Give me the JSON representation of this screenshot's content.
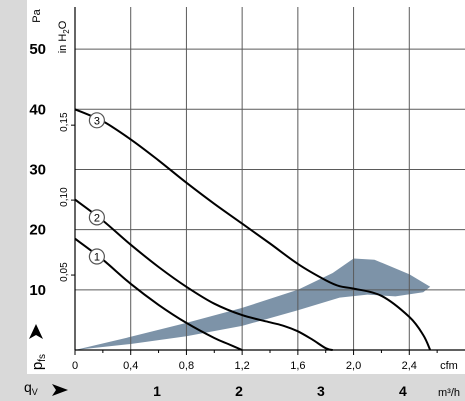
{
  "chart_data": {
    "type": "line",
    "title": "",
    "colors": {
      "panel": "#d9d9d9",
      "grid": "#5a5a5a",
      "curve": "#000000",
      "operating_area": "#7d93a8"
    },
    "y_axis_pa": {
      "label": "Pa",
      "range": [
        0,
        57
      ],
      "ticks": [
        {
          "value": 10,
          "label": "10"
        },
        {
          "value": 20,
          "label": "20"
        },
        {
          "value": 30,
          "label": "30"
        },
        {
          "value": 40,
          "label": "40"
        },
        {
          "value": 50,
          "label": "50"
        }
      ]
    },
    "y_axis_inh2o": {
      "label_main": "in H",
      "label_sub": "2",
      "label_end": "O",
      "ticks": [
        {
          "value": 0.05,
          "label": "0,05"
        },
        {
          "value": 0.1,
          "label": "0,10"
        },
        {
          "value": 0.15,
          "label": "0,15"
        }
      ]
    },
    "x_axis_cfm": {
      "label": "cfm",
      "range": [
        0,
        2.8
      ],
      "ticks": [
        {
          "value": 0,
          "label": "0"
        },
        {
          "value": 0.4,
          "label": "0,4"
        },
        {
          "value": 0.8,
          "label": "0,8"
        },
        {
          "value": 1.2,
          "label": "1,2"
        },
        {
          "value": 1.6,
          "label": "1,6"
        },
        {
          "value": 2.0,
          "label": "2,0"
        },
        {
          "value": 2.4,
          "label": "2,4"
        }
      ]
    },
    "x_axis_m3h": {
      "label": "m³/h",
      "ticks": [
        {
          "value": 1,
          "label": "1"
        },
        {
          "value": 2,
          "label": "2"
        },
        {
          "value": 3,
          "label": "3"
        },
        {
          "value": 4,
          "label": "4"
        }
      ]
    },
    "pressure_symbol": {
      "main": "p",
      "sub": "fs"
    },
    "flow_symbol": {
      "main": "q",
      "sub": "V"
    },
    "series": [
      {
        "name": "1",
        "x": [
          0,
          0.2,
          0.4,
          0.6,
          0.8,
          1.0,
          1.1,
          1.2
        ],
        "y": [
          18.5,
          15,
          11,
          7.5,
          4.5,
          2.0,
          1.0,
          0
        ]
      },
      {
        "name": "2",
        "x": [
          0,
          0.2,
          0.4,
          0.6,
          0.8,
          1.0,
          1.2,
          1.4,
          1.5,
          1.6,
          1.7,
          1.8,
          1.85
        ],
        "y": [
          25,
          21.5,
          17.5,
          13.8,
          10.5,
          7.7,
          5.8,
          4.6,
          4.0,
          3.1,
          1.8,
          0.3,
          0
        ]
      },
      {
        "name": "3",
        "x": [
          0,
          0.2,
          0.4,
          0.6,
          0.8,
          1.0,
          1.2,
          1.4,
          1.6,
          1.8,
          1.9,
          2.0,
          2.2,
          2.4,
          2.5,
          2.55
        ],
        "y": [
          40,
          38,
          35,
          31.5,
          27.8,
          24.3,
          21,
          17.7,
          14.3,
          11.6,
          10.6,
          10.2,
          9.0,
          5.5,
          2.5,
          0
        ]
      }
    ],
    "operating_area": {
      "points": [
        [
          0,
          0
        ],
        [
          0.4,
          2.2
        ],
        [
          0.8,
          4.5
        ],
        [
          1.2,
          7.0
        ],
        [
          1.6,
          10.0
        ],
        [
          1.85,
          12.8
        ],
        [
          2.0,
          15.2
        ],
        [
          2.15,
          15.0
        ],
        [
          2.4,
          12.6
        ],
        [
          2.55,
          10.5
        ],
        [
          2.5,
          9.6
        ],
        [
          2.3,
          8.9
        ],
        [
          2.1,
          9.2
        ],
        [
          1.9,
          8.7
        ],
        [
          1.6,
          6.6
        ],
        [
          1.2,
          4.0
        ],
        [
          0.8,
          2.3
        ],
        [
          0.4,
          1.0
        ],
        [
          0,
          0
        ]
      ]
    }
  }
}
